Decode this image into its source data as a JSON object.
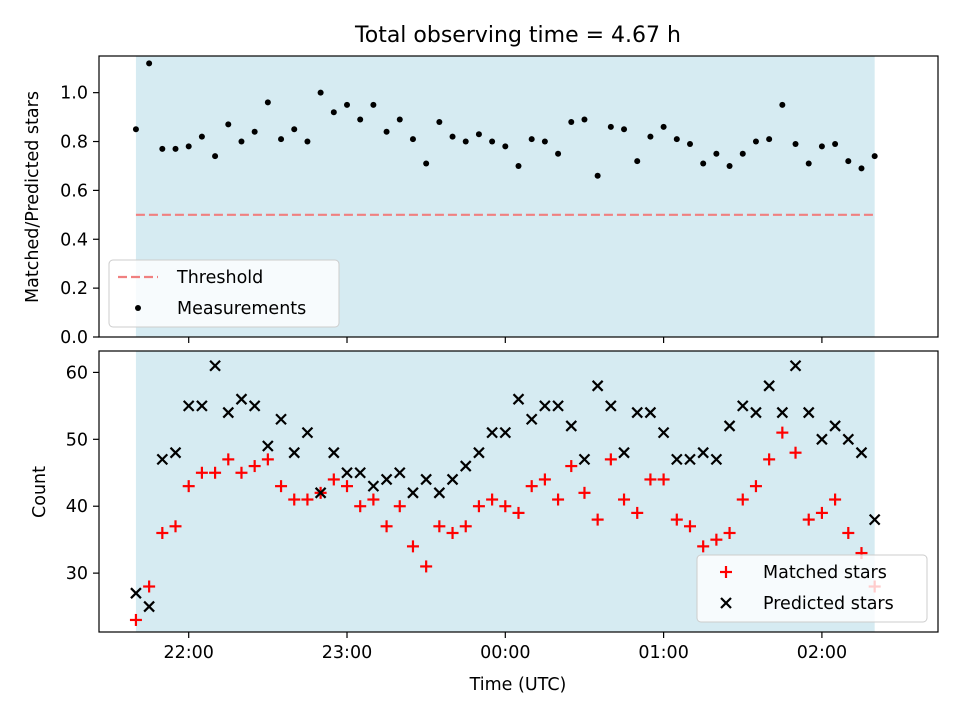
{
  "title": "Total observing time = 4.67 h",
  "colors": {
    "background_shade": "#add8e6",
    "threshold": "#f08080",
    "measurement": "#000000",
    "matched": "#ff0000",
    "predicted": "#000000"
  },
  "chart_data": [
    {
      "type": "scatter",
      "ylabel": "Matched/Predicted stars",
      "ylim": [
        0,
        1.15
      ],
      "yticks": [
        "0.0",
        "0.2",
        "0.4",
        "0.6",
        "0.8",
        "1.0"
      ],
      "x_range": [
        "21:26",
        "02:44"
      ],
      "shaded_span": [
        "21:40",
        "02:20"
      ],
      "legend_position": "lower-left",
      "threshold": {
        "name": "Threshold",
        "value": 0.5,
        "style": "dashed",
        "color": "#f08080"
      },
      "series": [
        {
          "name": "Measurements",
          "x": [
            "21:40",
            "21:45",
            "21:50",
            "21:55",
            "22:00",
            "22:05",
            "22:10",
            "22:15",
            "22:20",
            "22:25",
            "22:30",
            "22:35",
            "22:40",
            "22:45",
            "22:50",
            "22:55",
            "23:00",
            "23:05",
            "23:10",
            "23:15",
            "23:20",
            "23:25",
            "23:30",
            "23:35",
            "23:40",
            "23:45",
            "23:50",
            "23:55",
            "00:00",
            "00:05",
            "00:10",
            "00:15",
            "00:20",
            "00:25",
            "00:30",
            "00:35",
            "00:40",
            "00:45",
            "00:50",
            "00:55",
            "01:00",
            "01:05",
            "01:10",
            "01:15",
            "01:20",
            "01:25",
            "01:30",
            "01:35",
            "01:40",
            "01:45",
            "01:50",
            "01:55",
            "02:00",
            "02:05",
            "02:10",
            "02:15",
            "02:20"
          ],
          "values": [
            0.85,
            1.12,
            0.77,
            0.77,
            0.78,
            0.82,
            0.74,
            0.87,
            0.8,
            0.84,
            0.96,
            0.81,
            0.85,
            0.8,
            1.0,
            0.92,
            0.95,
            0.89,
            0.95,
            0.84,
            0.89,
            0.81,
            0.71,
            0.88,
            0.82,
            0.8,
            0.83,
            0.8,
            0.78,
            0.7,
            0.81,
            0.8,
            0.75,
            0.88,
            0.89,
            0.66,
            0.86,
            0.85,
            0.72,
            0.82,
            0.86,
            0.81,
            0.79,
            0.71,
            0.75,
            0.7,
            0.75,
            0.8,
            0.81,
            0.95,
            0.79,
            0.71,
            0.78,
            0.79,
            0.72,
            0.69,
            0.74
          ]
        }
      ]
    },
    {
      "type": "scatter",
      "ylabel": "Count",
      "xlabel": "Time (UTC)",
      "ylim": [
        21.2,
        63.2
      ],
      "yticks": [
        "30",
        "40",
        "50",
        "60"
      ],
      "xticks": [
        "22:00",
        "23:00",
        "00:00",
        "01:00",
        "02:00"
      ],
      "x_range": [
        "21:26",
        "02:44"
      ],
      "shaded_span": [
        "21:40",
        "02:20"
      ],
      "legend_position": "lower-right",
      "series": [
        {
          "name": "Matched stars",
          "marker": "+",
          "color": "#ff0000",
          "x": [
            "21:40",
            "21:45",
            "21:50",
            "21:55",
            "22:00",
            "22:05",
            "22:10",
            "22:15",
            "22:20",
            "22:25",
            "22:30",
            "22:35",
            "22:40",
            "22:45",
            "22:50",
            "22:55",
            "23:00",
            "23:05",
            "23:10",
            "23:15",
            "23:20",
            "23:25",
            "23:30",
            "23:35",
            "23:40",
            "23:45",
            "23:50",
            "23:55",
            "00:00",
            "00:05",
            "00:10",
            "00:15",
            "00:20",
            "00:25",
            "00:30",
            "00:35",
            "00:40",
            "00:45",
            "00:50",
            "00:55",
            "01:00",
            "01:05",
            "01:10",
            "01:15",
            "01:20",
            "01:25",
            "01:30",
            "01:35",
            "01:40",
            "01:45",
            "01:50",
            "01:55",
            "02:00",
            "02:05",
            "02:10",
            "02:15",
            "02:20"
          ],
          "values": [
            23,
            28,
            36,
            37,
            43,
            45,
            45,
            47,
            45,
            46,
            47,
            43,
            41,
            41,
            42,
            44,
            43,
            40,
            41,
            37,
            40,
            34,
            31,
            37,
            36,
            37,
            40,
            41,
            40,
            39,
            43,
            44,
            41,
            46,
            42,
            38,
            47,
            41,
            39,
            44,
            44,
            38,
            37,
            34,
            35,
            36,
            41,
            43,
            47,
            51,
            48,
            38,
            39,
            41,
            36,
            33,
            28
          ]
        },
        {
          "name": "Predicted stars",
          "marker": "x",
          "color": "#000000",
          "x": [
            "21:40",
            "21:45",
            "21:50",
            "21:55",
            "22:00",
            "22:05",
            "22:10",
            "22:15",
            "22:20",
            "22:25",
            "22:30",
            "22:35",
            "22:40",
            "22:45",
            "22:50",
            "22:55",
            "23:00",
            "23:05",
            "23:10",
            "23:15",
            "23:20",
            "23:25",
            "23:30",
            "23:35",
            "23:40",
            "23:45",
            "23:50",
            "23:55",
            "00:00",
            "00:05",
            "00:10",
            "00:15",
            "00:20",
            "00:25",
            "00:30",
            "00:35",
            "00:40",
            "00:45",
            "00:50",
            "00:55",
            "01:00",
            "01:05",
            "01:10",
            "01:15",
            "01:20",
            "01:25",
            "01:30",
            "01:35",
            "01:40",
            "01:45",
            "01:50",
            "01:55",
            "02:00",
            "02:05",
            "02:10",
            "02:15",
            "02:20"
          ],
          "values": [
            27,
            25,
            47,
            48,
            55,
            55,
            61,
            54,
            56,
            55,
            49,
            53,
            48,
            51,
            42,
            48,
            45,
            45,
            43,
            44,
            45,
            42,
            44,
            42,
            44,
            46,
            48,
            51,
            51,
            56,
            53,
            55,
            55,
            52,
            47,
            58,
            55,
            48,
            54,
            54,
            51,
            47,
            47,
            48,
            47,
            52,
            55,
            54,
            58,
            54,
            61,
            54,
            50,
            52,
            50,
            48,
            38
          ]
        }
      ]
    }
  ]
}
